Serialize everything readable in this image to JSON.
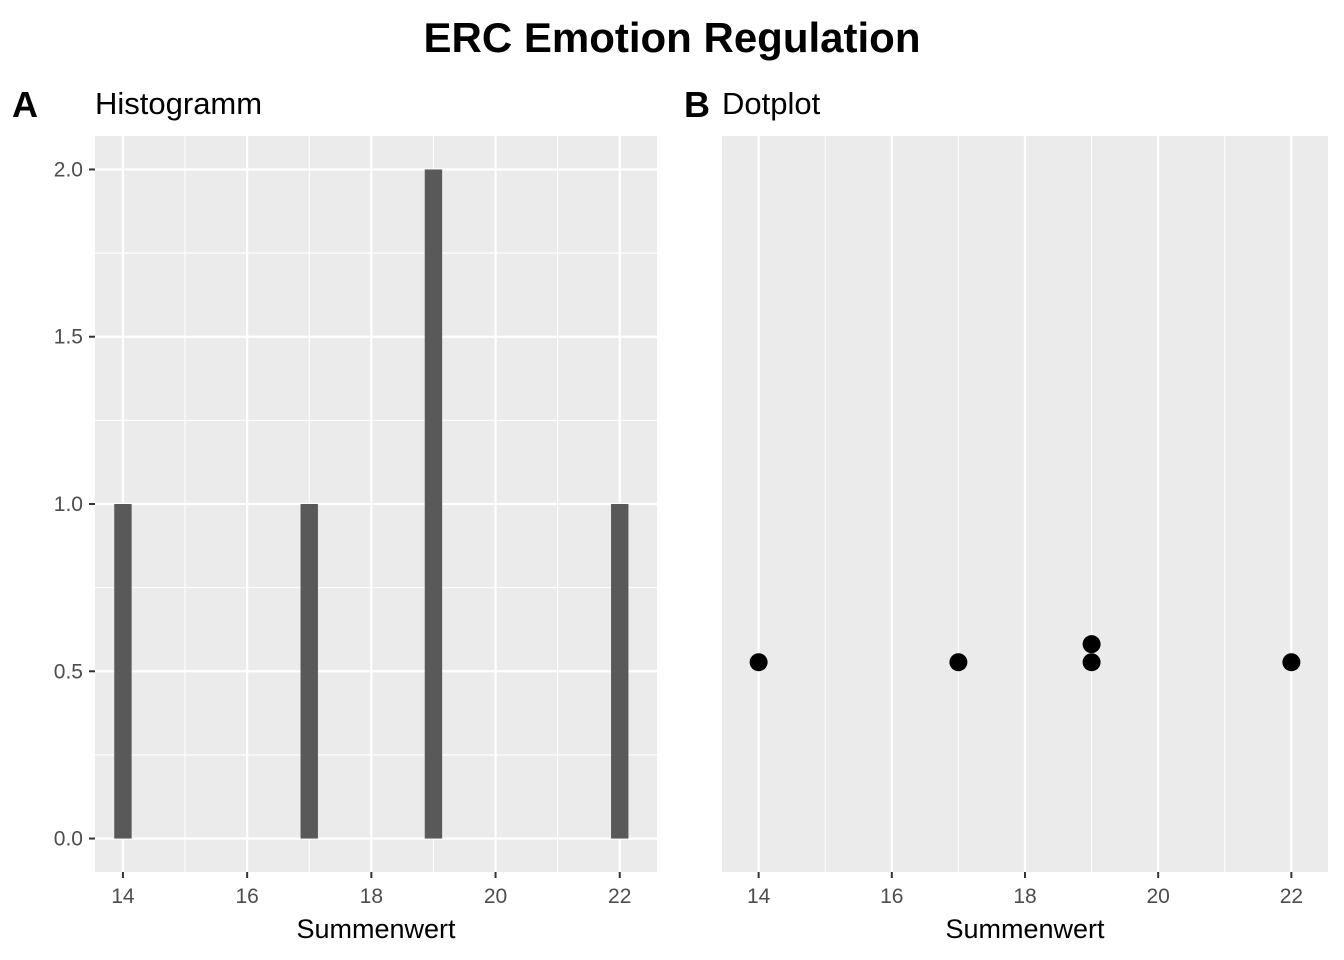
{
  "title": "ERC Emotion Regulation",
  "panels": {
    "a": {
      "tag": "A",
      "subtitle": "Histogramm"
    },
    "b": {
      "tag": "B",
      "subtitle": "Dotplot"
    }
  },
  "colors": {
    "panel_bg": "#ebebeb",
    "grid": "#ffffff",
    "bar": "#595959",
    "dot": "#000000"
  },
  "chart_data": [
    {
      "type": "bar",
      "subtitle": "Histogramm",
      "x": [
        14,
        17,
        19,
        22
      ],
      "values": [
        1,
        1,
        2,
        1
      ],
      "xlabel": "Summenwert",
      "ylabel": "",
      "xlim": [
        13.55,
        22.6
      ],
      "ylim": [
        -0.1,
        2.1
      ],
      "xticks": [
        14,
        16,
        18,
        20,
        22
      ],
      "yticks": [
        0.0,
        0.5,
        1.0,
        1.5,
        2.0
      ],
      "ytick_labels": [
        "0.0",
        "0.5",
        "1.0",
        "1.5",
        "2.0"
      ],
      "grid": true
    },
    {
      "type": "scatter",
      "subtitle": "Dotplot",
      "points": [
        {
          "x": 14,
          "y": 0.527
        },
        {
          "x": 17,
          "y": 0.527
        },
        {
          "x": 19,
          "y": 0.527
        },
        {
          "x": 19,
          "y": 0.581
        },
        {
          "x": 22,
          "y": 0.527
        }
      ],
      "xlabel": "Summenwert",
      "ylabel": "",
      "xlim": [
        13.45,
        22.55
      ],
      "ylim": [
        -0.1,
        2.1
      ],
      "xticks": [
        14,
        16,
        18,
        20,
        22
      ],
      "yticks": [],
      "grid": true
    }
  ]
}
